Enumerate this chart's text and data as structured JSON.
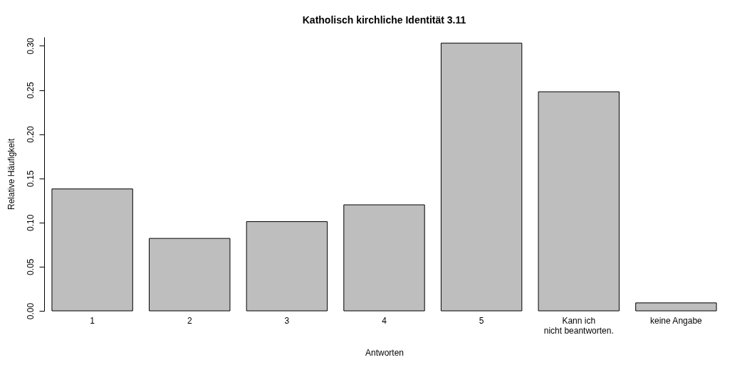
{
  "chart_data": {
    "type": "bar",
    "title": "Katholisch kirchliche Identität 3.11",
    "xlabel": "Antworten",
    "ylabel": "Relative Häufigkeit",
    "categories": [
      "1",
      "2",
      "3",
      "4",
      "5",
      "Kann ich\nnicht beantworten.",
      "keine Angabe"
    ],
    "values": [
      0.138,
      0.082,
      0.101,
      0.12,
      0.303,
      0.248,
      0.009
    ],
    "color": "#bebebe",
    "ylim": [
      0,
      0.31
    ],
    "yticks": [
      {
        "value": 0,
        "label": "0.00"
      },
      {
        "value": 0.05,
        "label": "0.05"
      },
      {
        "value": 0.1,
        "label": "0.10"
      },
      {
        "value": 0.15,
        "label": "0.15"
      },
      {
        "value": 0.2,
        "label": "0.20"
      },
      {
        "value": 0.25,
        "label": "0.25"
      },
      {
        "value": 0.3,
        "label": "0.30"
      }
    ],
    "grid": false
  }
}
